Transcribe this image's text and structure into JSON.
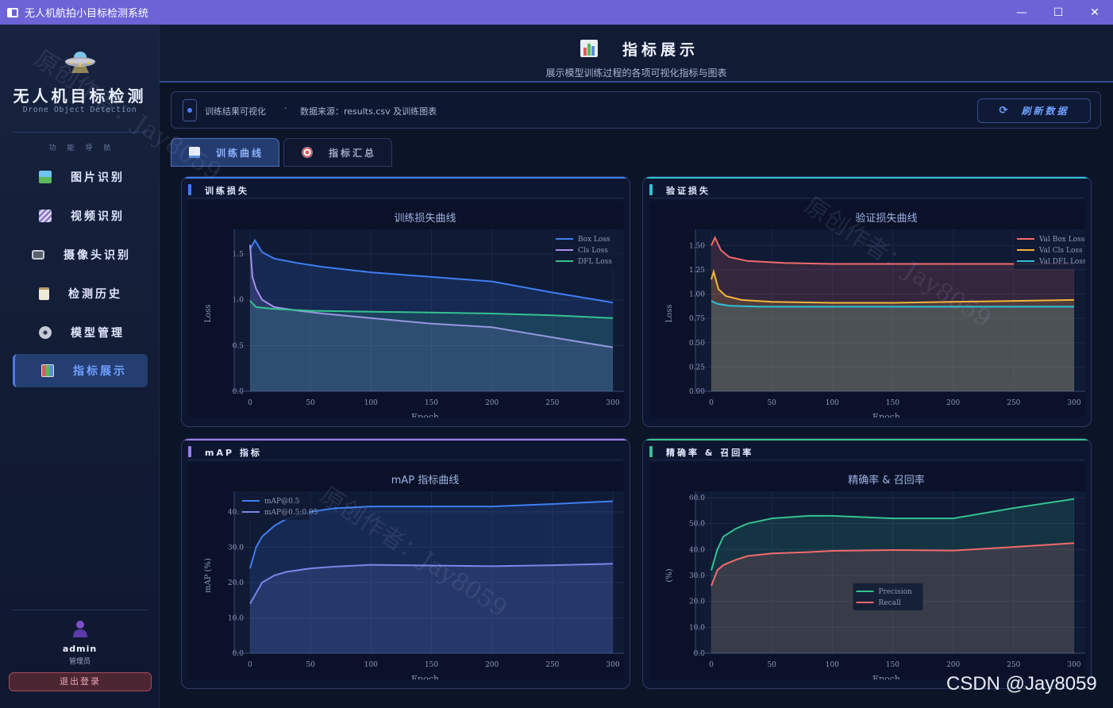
{
  "window": {
    "title": "无人机航拍小目标检测系统",
    "minimize": "—",
    "maximize": "☐",
    "close": "✕"
  },
  "sidebar": {
    "brand": "无人机目标检测",
    "brand_sub": "Drone Object Detection",
    "nav_title": "功能导航",
    "items": [
      {
        "label": "图片识别",
        "icon": "picture-icon",
        "color": "#5cb85c"
      },
      {
        "label": "视频识别",
        "icon": "clapper-icon",
        "color": "#8e7cc3"
      },
      {
        "label": "摄像头识别",
        "icon": "camera-icon",
        "color": "#9aa4b8"
      },
      {
        "label": "检测历史",
        "icon": "clipboard-icon",
        "color": "#d9d2c0"
      },
      {
        "label": "模型管理",
        "icon": "gear-icon",
        "color": "#b8c0d0"
      },
      {
        "label": "指标展示",
        "icon": "bar-chart-icon",
        "color": "#e05a5a",
        "active": true
      }
    ],
    "user_name": "admin",
    "user_role": "管理员",
    "logout": "退出登录"
  },
  "header": {
    "title": "指标展示",
    "subtitle": "展示模型训练过程的各项可视化指标与图表"
  },
  "infobar": {
    "label": "训练结果可视化",
    "separator": "·",
    "source": "数据来源：results.csv 及训练图表",
    "refresh": "刷新数据",
    "refresh_icon": "⟳"
  },
  "tabs": [
    {
      "label": "训练曲线",
      "active": true
    },
    {
      "label": "指标汇总",
      "active": false
    }
  ],
  "panels": {
    "train": {
      "title": "训练损失",
      "accent": "#3f7ef0"
    },
    "val": {
      "title": "验证损失",
      "accent": "#2fc0d8"
    },
    "map": {
      "title": "mAP 指标",
      "accent": "#9a7fe8"
    },
    "pr": {
      "title": "精确率 & 召回率",
      "accent": "#35c28f"
    }
  },
  "watermark": {
    "text": "原创作者：Jay8059"
  },
  "csdn": "CSDN @Jay8059",
  "chart_data": [
    {
      "id": "train",
      "type": "line",
      "title": "训练损失曲线",
      "xlabel": "Epoch",
      "ylabel": "Loss",
      "xlim": [
        0,
        300
      ],
      "ylim": [
        0,
        1.7
      ],
      "xticks": [
        0,
        50,
        100,
        150,
        200,
        250,
        300
      ],
      "yticks": [
        0.0,
        0.5,
        1.0,
        1.5
      ],
      "ytick_labels": [
        "0.0",
        "0.5",
        "1.0",
        "1.5"
      ],
      "legend": "top-right",
      "series": [
        {
          "name": "Box Loss",
          "color": "#3f7ef0",
          "x": [
            0,
            4,
            10,
            20,
            40,
            60,
            100,
            150,
            200,
            250,
            300
          ],
          "y": [
            1.55,
            1.65,
            1.52,
            1.45,
            1.4,
            1.36,
            1.3,
            1.25,
            1.2,
            1.08,
            0.97
          ]
        },
        {
          "name": "Cls Loss",
          "color": "#a98ef0",
          "x": [
            0,
            2,
            5,
            10,
            20,
            40,
            60,
            100,
            150,
            200,
            250,
            300
          ],
          "y": [
            1.6,
            1.25,
            1.12,
            1.0,
            0.92,
            0.88,
            0.85,
            0.8,
            0.74,
            0.7,
            0.59,
            0.48
          ]
        },
        {
          "name": "DFL Loss",
          "color": "#35c28f",
          "x": [
            0,
            5,
            20,
            50,
            100,
            150,
            200,
            250,
            300
          ],
          "y": [
            0.99,
            0.92,
            0.9,
            0.88,
            0.87,
            0.86,
            0.85,
            0.83,
            0.8
          ]
        }
      ]
    },
    {
      "id": "val",
      "type": "line",
      "title": "验证损失曲线",
      "xlabel": "Epoch",
      "ylabel": "Loss",
      "xlim": [
        0,
        300
      ],
      "ylim": [
        0,
        1.6
      ],
      "xticks": [
        0,
        50,
        100,
        150,
        200,
        250,
        300
      ],
      "yticks": [
        0.0,
        0.25,
        0.5,
        0.75,
        1.0,
        1.25,
        1.5
      ],
      "ytick_labels": [
        "0.00",
        "0.25",
        "0.50",
        "0.75",
        "1.00",
        "1.25",
        "1.50"
      ],
      "legend": "top-right",
      "series": [
        {
          "name": "Val Box Loss",
          "color": "#f06b6b",
          "x": [
            0,
            3,
            8,
            15,
            30,
            60,
            100,
            150,
            200,
            250,
            300
          ],
          "y": [
            1.5,
            1.58,
            1.45,
            1.38,
            1.34,
            1.32,
            1.31,
            1.31,
            1.31,
            1.31,
            1.31
          ]
        },
        {
          "name": "Val Cls Loss",
          "color": "#f2b63a",
          "x": [
            0,
            2,
            6,
            12,
            25,
            50,
            100,
            150,
            200,
            250,
            300
          ],
          "y": [
            1.15,
            1.23,
            1.05,
            0.98,
            0.94,
            0.92,
            0.91,
            0.91,
            0.92,
            0.93,
            0.94
          ]
        },
        {
          "name": "Val DFL Loss",
          "color": "#2fc0d8",
          "x": [
            0,
            5,
            15,
            40,
            100,
            200,
            300
          ],
          "y": [
            0.93,
            0.9,
            0.88,
            0.87,
            0.87,
            0.87,
            0.87
          ]
        }
      ]
    },
    {
      "id": "map",
      "type": "line",
      "title": "mAP 指标曲线",
      "xlabel": "Epoch",
      "ylabel": "mAP (%)",
      "xlim": [
        0,
        300
      ],
      "ylim": [
        0,
        44
      ],
      "xticks": [
        0,
        50,
        100,
        150,
        200,
        250,
        300
      ],
      "yticks": [
        0,
        10,
        20,
        30,
        40
      ],
      "ytick_labels": [
        "0.0",
        "10.0",
        "20.0",
        "30.0",
        "40.0"
      ],
      "legend": "top-left",
      "series": [
        {
          "name": "mAP@0.5",
          "color": "#3f7ef0",
          "x": [
            0,
            5,
            10,
            20,
            30,
            50,
            70,
            100,
            150,
            200,
            250,
            300
          ],
          "y": [
            24,
            30,
            33,
            36,
            38,
            40,
            41,
            41.5,
            41.5,
            41.5,
            42.2,
            43
          ]
        },
        {
          "name": "mAP@0.5:0.95",
          "color": "#7a86e8",
          "x": [
            0,
            5,
            10,
            20,
            30,
            50,
            70,
            100,
            150,
            200,
            250,
            300
          ],
          "y": [
            14,
            17,
            20,
            22,
            23,
            24,
            24.5,
            25,
            24.8,
            24.6,
            24.9,
            25.3
          ]
        }
      ]
    },
    {
      "id": "pr",
      "type": "line",
      "title": "精确率 & 召回率",
      "xlabel": "Epoch",
      "ylabel": "(%)",
      "xlim": [
        0,
        300
      ],
      "ylim": [
        0,
        60
      ],
      "xticks": [
        0,
        50,
        100,
        150,
        200,
        250,
        300
      ],
      "yticks": [
        0,
        10,
        20,
        30,
        40,
        50,
        60
      ],
      "ytick_labels": [
        "0.0",
        "10.0",
        "20.0",
        "30.0",
        "40.0",
        "50.0",
        "60.0"
      ],
      "legend": "center",
      "series": [
        {
          "name": "Precision",
          "color": "#35c28f",
          "x": [
            0,
            5,
            10,
            20,
            30,
            50,
            80,
            100,
            150,
            200,
            250,
            300
          ],
          "y": [
            32,
            40,
            45,
            48,
            50,
            52,
            53,
            53,
            52,
            52,
            56,
            59.5
          ]
        },
        {
          "name": "Recall",
          "color": "#f06b6b",
          "x": [
            0,
            5,
            10,
            20,
            30,
            50,
            80,
            100,
            150,
            200,
            250,
            300
          ],
          "y": [
            26,
            32,
            34,
            36,
            37.5,
            38.5,
            39,
            39.5,
            39.8,
            39.6,
            41,
            42.5
          ]
        }
      ]
    }
  ]
}
